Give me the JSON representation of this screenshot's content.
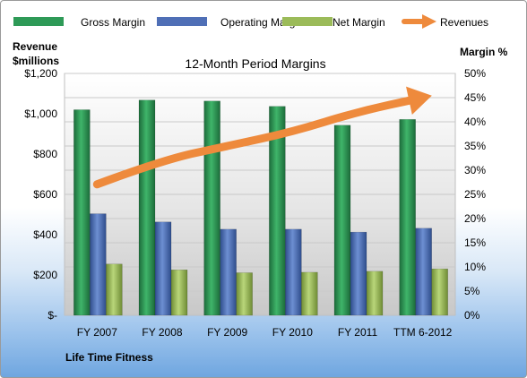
{
  "chart_data": {
    "type": "bar",
    "title": "12-Month Period Margins",
    "left_axis_label_line1": "Revenue",
    "left_axis_label_line2": "$millions",
    "right_axis_label": "Margin %",
    "footer_label": "Life Time Fitness",
    "categories": [
      "FY 2007",
      "FY 2008",
      "FY 2009",
      "FY 2010",
      "FY 2011",
      "TTM 6-2012"
    ],
    "left_axis": {
      "range": [
        0,
        1200
      ],
      "ticks": [
        "$-",
        "$200",
        "$400",
        "$600",
        "$800",
        "$1,000",
        "$1,200"
      ]
    },
    "right_axis": {
      "range": [
        0,
        50
      ],
      "ticks": [
        "0%",
        "5%",
        "10%",
        "15%",
        "20%",
        "25%",
        "30%",
        "35%",
        "40%",
        "45%",
        "50%"
      ]
    },
    "series": [
      {
        "name": "Gross Margin",
        "axis": "right",
        "unit": "%",
        "values": [
          42.5,
          44.5,
          44.3,
          43.2,
          39.3,
          40.5
        ],
        "color": "#2e9a57"
      },
      {
        "name": "Operating Margin",
        "axis": "right",
        "unit": "%",
        "values": [
          21.0,
          19.3,
          17.8,
          17.8,
          17.2,
          18.0
        ],
        "color": "#4f6fb6"
      },
      {
        "name": "Net Margin",
        "axis": "right",
        "unit": "%",
        "values": [
          10.6,
          9.4,
          8.8,
          8.9,
          9.1,
          9.6
        ],
        "color": "#9bbb59"
      },
      {
        "name": "Revenues",
        "axis": "left",
        "unit": "$millions",
        "type": "trend-arrow",
        "values": [
          650,
          770,
          840,
          910,
          1010,
          1080
        ],
        "color": "#ee8a3c"
      }
    ],
    "grid": true,
    "legend_position": "top"
  }
}
